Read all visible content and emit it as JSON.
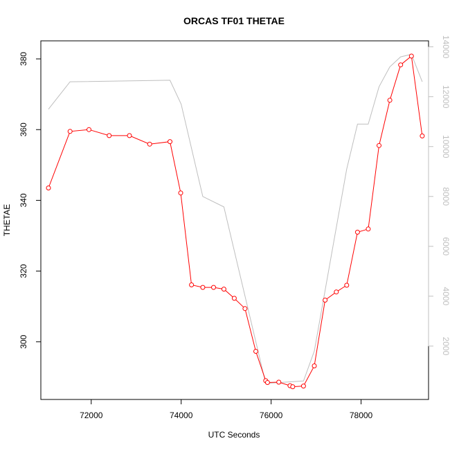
{
  "chart_data": {
    "type": "line",
    "title": "ORCAS TF01 THETAE",
    "xlabel": "UTC Seconds",
    "ylabel": "THETAE",
    "xlim": [
      70880,
      79500
    ],
    "ylim": [
      283.7,
      385.1
    ],
    "y2lim": [
      -140,
      14240
    ],
    "x_ticks": [
      72000,
      74000,
      76000,
      78000
    ],
    "y_ticks": [
      300,
      320,
      340,
      360,
      380
    ],
    "y2_ticks": [
      2000,
      4000,
      6000,
      8000,
      10000,
      12000,
      14000
    ],
    "grid": false,
    "colors": {
      "primary": "#ff0000",
      "secondary": "#bebebe",
      "frame": "#000000"
    },
    "series": [
      {
        "axis": "left",
        "color": "#ff0000",
        "marker": "open-circle",
        "x": [
          71050,
          71530,
          71950,
          72400,
          72850,
          73300,
          73750,
          73990,
          74230,
          74480,
          74720,
          74950,
          75180,
          75420,
          75660,
          75880,
          75920,
          76170,
          76420,
          76480,
          76720,
          76960,
          77200,
          77450,
          77680,
          77920,
          78160,
          78400,
          78640,
          78880,
          79120,
          79360
        ],
        "values": [
          343.5,
          359.5,
          360.0,
          358.3,
          358.3,
          355.9,
          356.6,
          342.1,
          316.1,
          315.4,
          315.4,
          314.9,
          312.3,
          309.4,
          297.3,
          289.0,
          288.5,
          288.6,
          287.6,
          287.3,
          287.5,
          293.2,
          311.8,
          314.1,
          316.0,
          331.0,
          331.9,
          355.5,
          368.3,
          378.3,
          380.8,
          358.2
        ]
      },
      {
        "axis": "right",
        "color": "#bebebe",
        "x": [
          71050,
          71530,
          73750,
          74000,
          74480,
          74950,
          75880,
          76720,
          76960,
          77680,
          77920,
          78160,
          78400,
          78640,
          78880,
          79120,
          79360
        ],
        "values": [
          11500,
          12600,
          12660,
          11700,
          8000,
          7580,
          500,
          600,
          1800,
          9100,
          10900,
          10900,
          12400,
          13200,
          13600,
          13700,
          12600
        ]
      }
    ]
  }
}
